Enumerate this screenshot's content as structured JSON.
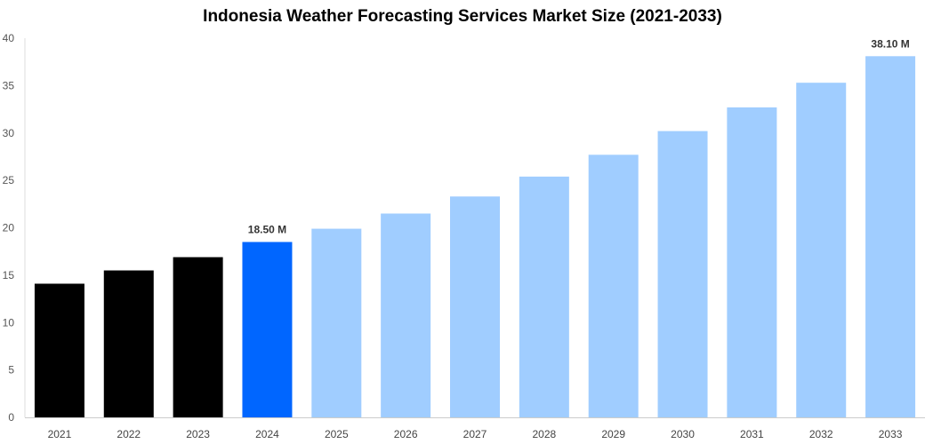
{
  "chart_data": {
    "type": "bar",
    "title": "Indonesia Weather Forecasting Services Market Size (2021-2033)",
    "xlabel": "",
    "ylabel": "",
    "ylim": [
      0,
      40
    ],
    "yticks": [
      0,
      5,
      10,
      15,
      20,
      25,
      30,
      35,
      40
    ],
    "grid": false,
    "categories": [
      "2021",
      "2022",
      "2023",
      "2024",
      "2025",
      "2026",
      "2027",
      "2028",
      "2029",
      "2030",
      "2031",
      "2032",
      "2033"
    ],
    "values": [
      14.1,
      15.5,
      16.9,
      18.5,
      19.9,
      21.5,
      23.3,
      25.4,
      27.7,
      30.2,
      32.7,
      35.3,
      38.1
    ],
    "data_labels": {
      "3": "18.50 M",
      "12": "38.10 M"
    },
    "colors": {
      "historical": "#000000",
      "current": "#0066ff",
      "forecast": "#a0cdff"
    },
    "color_groups": [
      "historical",
      "historical",
      "historical",
      "current",
      "forecast",
      "forecast",
      "forecast",
      "forecast",
      "forecast",
      "forecast",
      "forecast",
      "forecast",
      "forecast"
    ]
  }
}
